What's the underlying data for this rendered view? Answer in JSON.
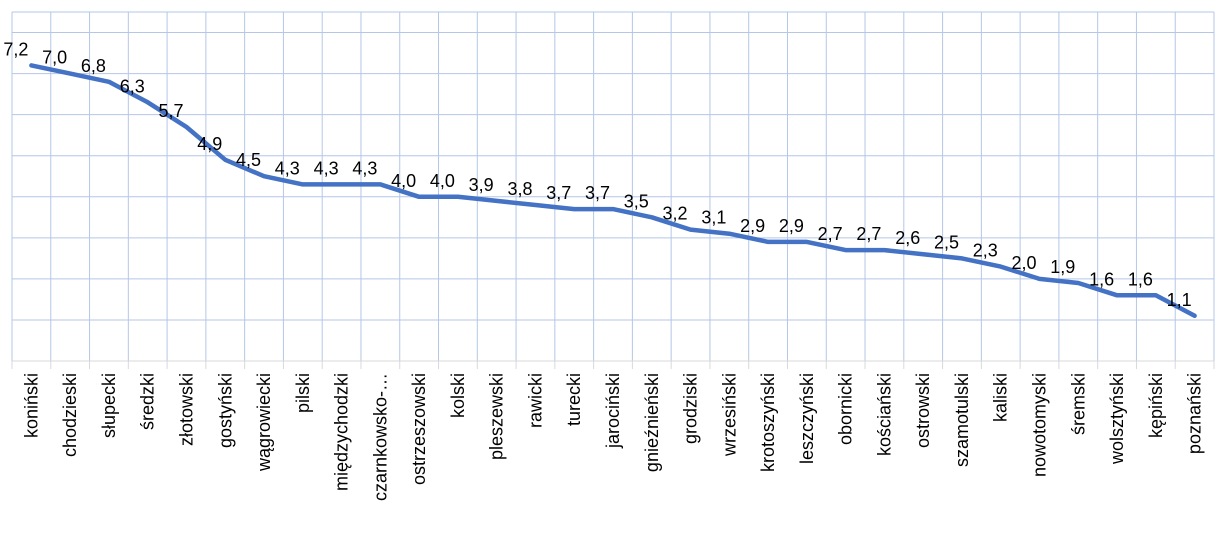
{
  "chart_data": {
    "type": "line",
    "title": "",
    "xlabel": "",
    "ylabel": "",
    "categories": [
      "koniński",
      "chodzieski",
      "słupecki",
      "średzki",
      "złotowski",
      "gostyński",
      "wągrowiecki",
      "pilski",
      "międzychodzki",
      "czarnkowsko-…",
      "ostrzeszowski",
      "kolski",
      "pleszewski",
      "rawicki",
      "turecki",
      "jarociński",
      "gnieźnieński",
      "grodziski",
      "wrzesiński",
      "krotoszyński",
      "leszczyński",
      "obornicki",
      "kościański",
      "ostrowski",
      "szamotulski",
      "kaliski",
      "nowotomyski",
      "śremski",
      "wolsztyński",
      "kępiński",
      "poznański"
    ],
    "values": [
      7.2,
      7.0,
      6.8,
      6.3,
      5.7,
      4.9,
      4.5,
      4.3,
      4.3,
      4.3,
      4.0,
      4.0,
      3.9,
      3.8,
      3.7,
      3.7,
      3.5,
      3.2,
      3.1,
      2.9,
      2.9,
      2.7,
      2.7,
      2.6,
      2.5,
      2.3,
      2.0,
      1.9,
      1.6,
      1.6,
      1.1
    ],
    "data_labels": [
      "7,2",
      "7,0",
      "6,8",
      "6,3",
      "5,7",
      "4,9",
      "4,5",
      "4,3",
      "4,3",
      "4,3",
      "4,0",
      "4,0",
      "3,9",
      "3,8",
      "3,7",
      "3,7",
      "3,5",
      "3,2",
      "3,1",
      "2,9",
      "2,9",
      "2,7",
      "2,7",
      "2,6",
      "2,5",
      "2,3",
      "2,0",
      "1,9",
      "1,6",
      "1,6",
      "1,1"
    ],
    "ylim": [
      0,
      8.5
    ],
    "grid": true,
    "legend": "none",
    "colors": {
      "line": "#4472c4",
      "grid": "#b4c7e7"
    }
  }
}
